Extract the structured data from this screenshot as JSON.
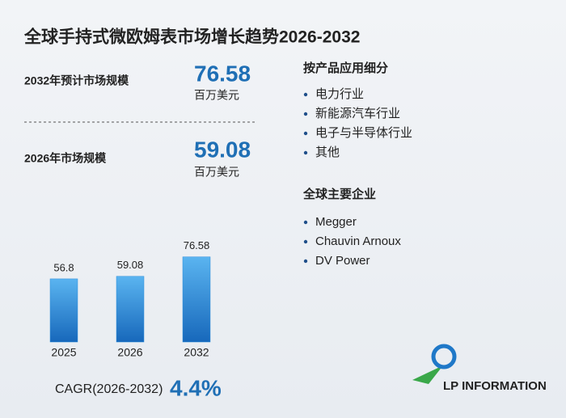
{
  "chart_data": {
    "type": "bar",
    "title": "全球手持式微欧姆表市场增长趋势2026-2032",
    "categories": [
      "2025",
      "2026",
      "2032"
    ],
    "values": [
      56.8,
      59.08,
      76.58
    ],
    "color": "#2f8fdc",
    "ylim": [
      0,
      80
    ]
  },
  "stats": [
    {
      "label": "2032年预计市场规模",
      "value": "76.58",
      "unit": "百万美元"
    },
    {
      "label": "2026年市场规模",
      "value": "59.08",
      "unit": "百万美元"
    }
  ],
  "segments": {
    "title": "按产品应用细分",
    "items": [
      "电力行业",
      "新能源汽车行业",
      "电子与半导体行业",
      "其他"
    ]
  },
  "companies": {
    "title": "全球主要企业",
    "items": [
      "Megger",
      "Chauvin Arnoux",
      "DV Power"
    ]
  },
  "cagr": {
    "label": "CAGR(2026-2032)",
    "value": "4.4%"
  },
  "logo": "LP INFORMATION"
}
